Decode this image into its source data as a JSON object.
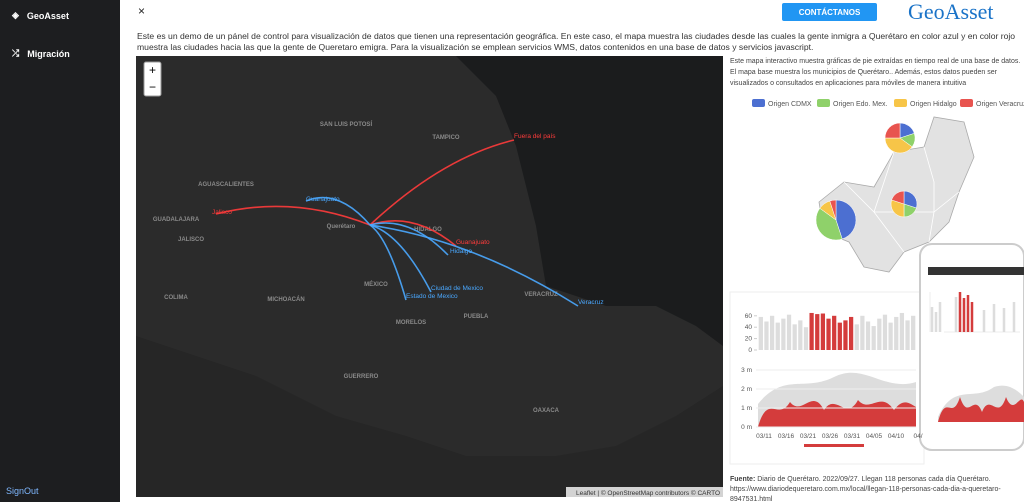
{
  "sidebar": {
    "brand": "GeoAsset",
    "items": [
      "Migración"
    ],
    "signout": "SignOut"
  },
  "topbar": {
    "close": "×",
    "button": "CONTÁCTANOS",
    "logo": "GeoAsset"
  },
  "intro": "Este es un demo de un pánel de control para visualización de datos que tienen una representación geográfica. En este caso, el mapa muestra las ciudades desde las cuales la gente inmigra a Querétaro en color azul y en color rojo muestra las ciudades hacia las que la gente de Queretaro emigra. Para la visualización se emplean servicios WMS, datos contenidos en una base de datos y servicios javascript.",
  "map": {
    "zoom_in": "+",
    "zoom_out": "−",
    "flows": [
      {
        "text": "Fuera del país",
        "color": "#ff3b3b"
      },
      {
        "text": "Jalisco",
        "color": "#ff3b3b"
      },
      {
        "text": "Guanajuato",
        "color": "#ff3b3b"
      },
      {
        "text": "Guanajuato",
        "color": "#4aa8ff"
      },
      {
        "text": "Hidalgo",
        "color": "#4aa8ff"
      },
      {
        "text": "Ciudad de Mexico",
        "color": "#4aa8ff"
      },
      {
        "text": "Estado de Mexico",
        "color": "#4aa8ff"
      },
      {
        "text": "Veracruz",
        "color": "#4aa8ff"
      }
    ],
    "places": [
      "SAN LUIS POTOSÍ",
      "JALISCO",
      "MICHOACÁN",
      "GUERRERO",
      "OAXACA",
      "PUEBLA",
      "MORELOS",
      "HIDALGO",
      "VERACRUZ",
      "COLIMA",
      "MÉXICO",
      "GUADALAJARA",
      "TAMPICO",
      "AGUASCALIENTES",
      "Querétaro"
    ],
    "attribution": "Leaflet | © OpenStreetMap contributors © CARTO"
  },
  "panel": {
    "description": "Este mapa interactivo muestra gráficas de pie extraídas en tiempo real de una base de datos. El mapa base muestra los municipios de Querétaro.. Además, estos datos pueden ser visualizados o consultados en aplicaciones para móviles de manera intuitiva",
    "legend": [
      {
        "name": "Origen CDMX",
        "color": "#4c6fd1"
      },
      {
        "name": "Origen Edo. Mex.",
        "color": "#8fd16a"
      },
      {
        "name": "Origen Hidalgo",
        "color": "#f7c548"
      },
      {
        "name": "Origen Veracruz",
        "color": "#e8544f"
      }
    ],
    "source_label": "Fuente:",
    "source_text": "Diario de Querétaro. 2022/09/27. Llegan 118 personas cada día Querétaro. https://www.diariodequeretaro.com.mx/local/llegan-118-personas-cada-dia-a-queretaro-8947531.html"
  },
  "mockup": {
    "ylim": [
      0,
      75
    ],
    "yticks": [
      0,
      20,
      40,
      60
    ],
    "bars": [
      58,
      50,
      60,
      48,
      55,
      62,
      45,
      52,
      40,
      65,
      63,
      64,
      55,
      60,
      48,
      52,
      58,
      45,
      60,
      50,
      42,
      55,
      62,
      48,
      58,
      65,
      52,
      60
    ],
    "bar_colors": [
      "#ddd",
      "#ddd",
      "#ddd",
      "#ddd",
      "#ddd",
      "#ddd",
      "#ddd",
      "#ddd",
      "#ddd",
      "#d43c3c",
      "#d43c3c",
      "#d43c3c",
      "#d43c3c",
      "#d43c3c",
      "#d43c3c",
      "#d43c3c",
      "#d43c3c",
      "#ddd",
      "#ddd",
      "#ddd",
      "#ddd",
      "#ddd",
      "#ddd",
      "#ddd",
      "#ddd",
      "#ddd",
      "#ddd",
      "#ddd"
    ],
    "area_ylim": [
      0,
      3000000
    ],
    "area_ticks": [
      {
        "value": 0,
        "label": "0 m"
      },
      {
        "value": 1000000,
        "label": "1 m"
      },
      {
        "value": 2000000,
        "label": "2 m"
      },
      {
        "value": 3000000,
        "label": "3 m"
      }
    ],
    "dates": [
      "03/11",
      "03/16",
      "03/21",
      "03/26",
      "03/31",
      "04/05",
      "04/10",
      "04/"
    ]
  }
}
